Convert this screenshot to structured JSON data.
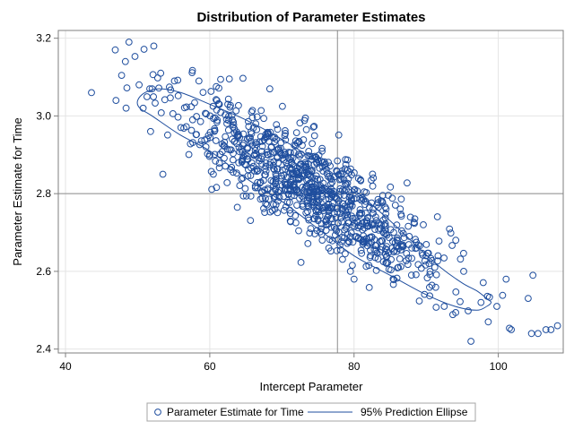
{
  "chart_data": {
    "type": "scatter",
    "title": "Distribution of Parameter Estimates",
    "xlabel": "Intercept Parameter",
    "ylabel": "Parameter Estimate for Time",
    "xlim": [
      39,
      109
    ],
    "ylim": [
      2.39,
      3.22
    ],
    "xticks": [
      40,
      60,
      80,
      100
    ],
    "xtick_labels": [
      "40",
      "60",
      "80",
      "100"
    ],
    "yticks": [
      2.4,
      2.6,
      2.8,
      3.0,
      3.2
    ],
    "ytick_labels": [
      "2.4",
      "2.6",
      "2.8",
      "3.0",
      "3.2"
    ],
    "grid": true,
    "reference_lines": {
      "x": 77.7,
      "y": 2.8
    },
    "series": [
      {
        "name": "Parameter Estimate for Time",
        "marker": "open-circle",
        "color": "#1F4E9E",
        "n_points": 1000,
        "mean": [
          74.5,
          2.81
        ],
        "sd": [
          9.2,
          0.12
        ],
        "correlation": -0.85,
        "points": [
          [
            43.6,
            3.06
          ],
          [
            46.9,
            3.17
          ],
          [
            48.8,
            3.19
          ],
          [
            48.3,
            3.14
          ],
          [
            47.0,
            3.04
          ],
          [
            48.4,
            3.02
          ],
          [
            50.2,
            3.08
          ],
          [
            52.0,
            3.07
          ],
          [
            53.2,
            3.11
          ],
          [
            55.1,
            3.09
          ],
          [
            58.5,
            3.09
          ],
          [
            61.0,
            3.04
          ],
          [
            62.5,
            3.03
          ],
          [
            51.8,
            2.96
          ],
          [
            53.5,
            2.85
          ],
          [
            56.0,
            2.97
          ],
          [
            60.0,
            2.9
          ],
          [
            60.5,
            2.85
          ],
          [
            96.2,
            2.42
          ],
          [
            104.6,
            2.44
          ],
          [
            105.5,
            2.44
          ],
          [
            106.6,
            2.45
          ],
          [
            107.3,
            2.45
          ],
          [
            108.2,
            2.46
          ],
          [
            104.8,
            2.59
          ],
          [
            101.8,
            2.45
          ],
          [
            98.6,
            2.47
          ],
          [
            99.8,
            2.51
          ],
          [
            97.6,
            2.52
          ],
          [
            95.2,
            2.6
          ],
          [
            94.1,
            2.68
          ],
          [
            92.5,
            2.51
          ],
          [
            90.4,
            2.62
          ],
          [
            89.6,
            2.72
          ],
          [
            88.0,
            2.66
          ],
          [
            85.5,
            2.7
          ],
          [
            83.0,
            2.74
          ],
          [
            81.6,
            2.78
          ],
          [
            80.0,
            2.58
          ],
          [
            79.5,
            2.6
          ],
          [
            76.5,
            2.66
          ],
          [
            74.0,
            2.71
          ]
        ]
      },
      {
        "name": "95% Prediction Ellipse",
        "type": "line",
        "color": "#1F4E9E"
      }
    ],
    "prediction_ellipse": {
      "level": 0.95,
      "boundary": [
        [
          50.0,
          3.04
        ],
        [
          51.0,
          3.06
        ],
        [
          53.0,
          3.07
        ],
        [
          56.0,
          3.06
        ],
        [
          60.0,
          3.03
        ],
        [
          65.0,
          2.99
        ],
        [
          70.0,
          2.94
        ],
        [
          75.0,
          2.88
        ],
        [
          80.0,
          2.81
        ],
        [
          85.0,
          2.73
        ],
        [
          89.0,
          2.66
        ],
        [
          92.0,
          2.61
        ],
        [
          95.0,
          2.57
        ],
        [
          97.0,
          2.55
        ],
        [
          98.4,
          2.53
        ],
        [
          99.0,
          2.52
        ],
        [
          98.4,
          2.51
        ],
        [
          97.0,
          2.5
        ],
        [
          94.0,
          2.51
        ],
        [
          90.0,
          2.54
        ],
        [
          85.0,
          2.59
        ],
        [
          80.0,
          2.64
        ],
        [
          75.0,
          2.71
        ],
        [
          70.0,
          2.78
        ],
        [
          65.0,
          2.84
        ],
        [
          60.0,
          2.91
        ],
        [
          56.0,
          2.95
        ],
        [
          52.0,
          3.0
        ],
        [
          50.3,
          3.02
        ]
      ]
    },
    "legend": {
      "position": "bottom",
      "entries": [
        "Parameter Estimate for Time",
        "95% Prediction Ellipse"
      ]
    }
  },
  "colors": {
    "marker": "#1F4E9E",
    "ellipse": "#1F4E9E",
    "grid": "#E4E4E4",
    "reference_line": "#8C8C8C",
    "frame": "#7F7F7F"
  }
}
